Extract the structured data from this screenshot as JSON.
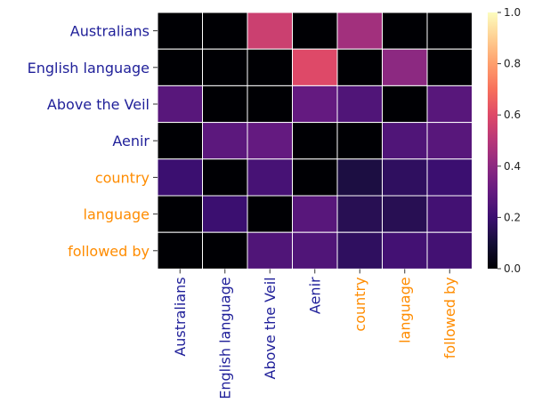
{
  "chart_data": {
    "type": "heatmap",
    "rows": [
      {
        "label": "Australians",
        "color": "#1f1f99"
      },
      {
        "label": "English language",
        "color": "#1f1f99"
      },
      {
        "label": "Above the Veil",
        "color": "#1f1f99"
      },
      {
        "label": "Aenir",
        "color": "#1f1f99"
      },
      {
        "label": "country",
        "color": "#ff8c00"
      },
      {
        "label": "language",
        "color": "#ff8c00"
      },
      {
        "label": "followed by",
        "color": "#ff8c00"
      }
    ],
    "columns": [
      {
        "label": "Australians",
        "color": "#1f1f99"
      },
      {
        "label": "English language",
        "color": "#1f1f99"
      },
      {
        "label": "Above the Veil",
        "color": "#1f1f99"
      },
      {
        "label": "Aenir",
        "color": "#1f1f99"
      },
      {
        "label": "country",
        "color": "#ff8c00"
      },
      {
        "label": "language",
        "color": "#ff8c00"
      },
      {
        "label": "followed by",
        "color": "#ff8c00"
      }
    ],
    "values": [
      [
        0.0,
        0.0,
        0.55,
        0.0,
        0.45,
        0.0,
        0.0
      ],
      [
        0.0,
        0.0,
        0.0,
        0.6,
        0.0,
        0.4,
        0.0
      ],
      [
        0.27,
        0.0,
        0.0,
        0.3,
        0.25,
        0.0,
        0.27
      ],
      [
        0.0,
        0.28,
        0.3,
        0.0,
        0.0,
        0.25,
        0.27
      ],
      [
        0.2,
        0.0,
        0.23,
        0.0,
        0.12,
        0.17,
        0.2
      ],
      [
        0.0,
        0.2,
        0.0,
        0.27,
        0.15,
        0.15,
        0.22
      ],
      [
        0.0,
        0.0,
        0.25,
        0.25,
        0.17,
        0.22,
        0.22
      ]
    ],
    "colorbar": {
      "min": 0.0,
      "max": 1.0,
      "ticks": [
        "0.0",
        "0.2",
        "0.4",
        "0.6",
        "0.8",
        "1.0"
      ]
    },
    "colormap": "magma",
    "cell_border": "white"
  }
}
